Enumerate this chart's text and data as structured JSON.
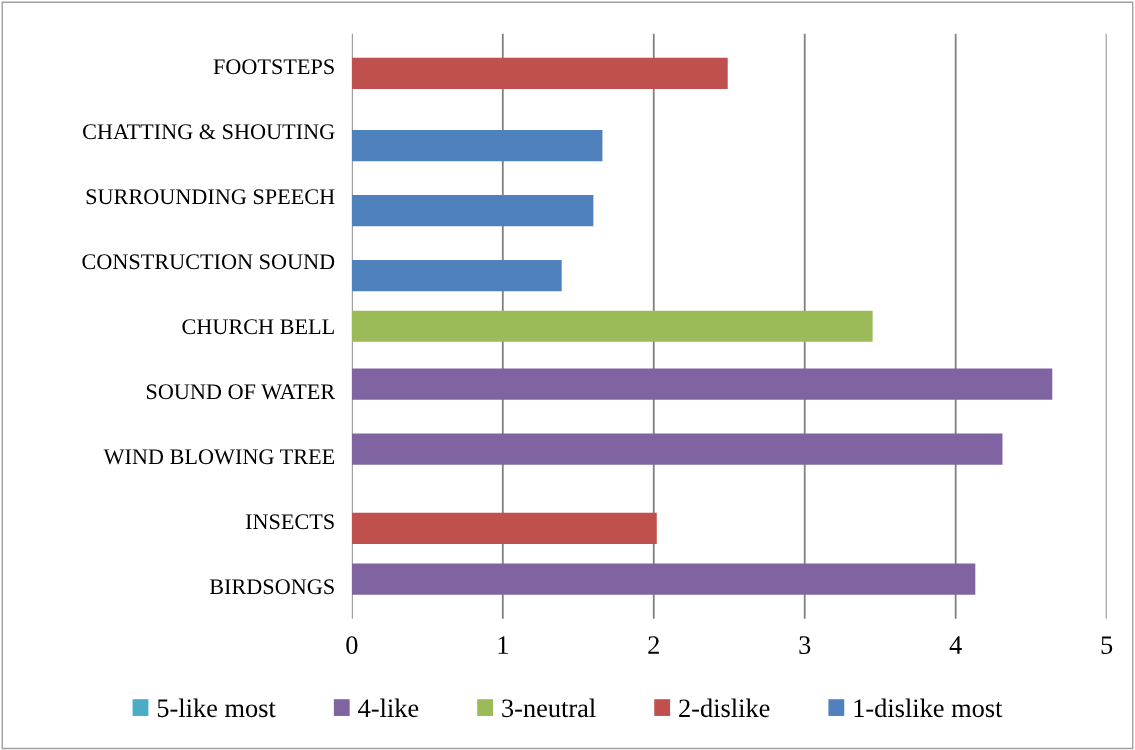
{
  "chart_data": {
    "type": "bar",
    "orientation": "horizontal",
    "categories": [
      "FOOTSTEPS",
      "CHATTING & SHOUTING",
      "SURROUNDING SPEECH",
      "CONSTRUCTION SOUND",
      "CHURCH BELL",
      "SOUND OF WATER",
      "WIND BLOWING TREE",
      "INSECTS",
      "BIRDSONGS"
    ],
    "series": [
      {
        "name": "5-like most",
        "color": "#4bacc6",
        "values": [
          null,
          null,
          null,
          null,
          null,
          null,
          null,
          null,
          null
        ]
      },
      {
        "name": "4-like",
        "color": "#8064a2",
        "values": [
          null,
          null,
          null,
          null,
          null,
          4.64,
          4.31,
          null,
          4.13
        ]
      },
      {
        "name": "3-neutral",
        "color": "#9bbb59",
        "values": [
          null,
          null,
          null,
          null,
          3.45,
          null,
          null,
          null,
          null
        ]
      },
      {
        "name": "2-dislike",
        "color": "#c0504d",
        "values": [
          2.49,
          null,
          null,
          null,
          null,
          null,
          null,
          2.02,
          null
        ]
      },
      {
        "name": "1-dislike most",
        "color": "#4f81bd",
        "values": [
          null,
          1.66,
          1.6,
          1.39,
          null,
          null,
          null,
          null,
          null
        ]
      }
    ],
    "xlim": [
      0,
      5
    ],
    "xticks": [
      0,
      1,
      2,
      3,
      4,
      5
    ],
    "grid": "x",
    "legend": "bottom"
  }
}
